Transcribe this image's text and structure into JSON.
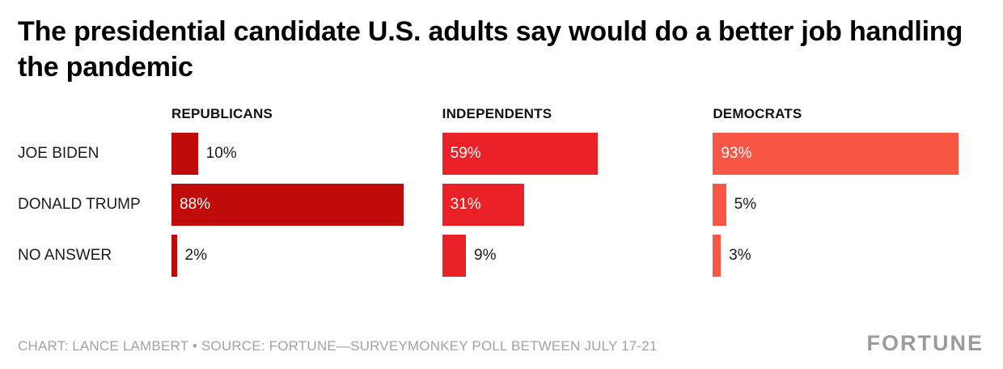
{
  "title": "The presidential candidate U.S. adults say would do a better job handling the pandemic",
  "chart_data": {
    "type": "bar",
    "orientation": "horizontal",
    "value_suffix": "%",
    "xlim": [
      0,
      100
    ],
    "categories": [
      "JOE BIDEN",
      "DONALD TRUMP",
      "NO ANSWER"
    ],
    "series": [
      {
        "name": "REPUBLICANS",
        "color": "#c00b0b",
        "values": [
          10,
          88,
          2
        ]
      },
      {
        "name": "INDEPENDENTS",
        "color": "#ea2127",
        "values": [
          59,
          31,
          9
        ]
      },
      {
        "name": "DEMOCRATS",
        "color": "#fa5645",
        "values": [
          93,
          5,
          3
        ]
      }
    ],
    "inside_label_threshold": 15,
    "inside_label_color": "#ffffff",
    "outside_label_color": "#1a1a1a",
    "legend_position": "none",
    "grid": false
  },
  "footer": {
    "credit": "CHART: LANCE LAMBERT • SOURCE: FORTUNE—SURVEYMONKEY POLL BETWEEN JULY 17-21",
    "logo": "FORTUNE"
  }
}
